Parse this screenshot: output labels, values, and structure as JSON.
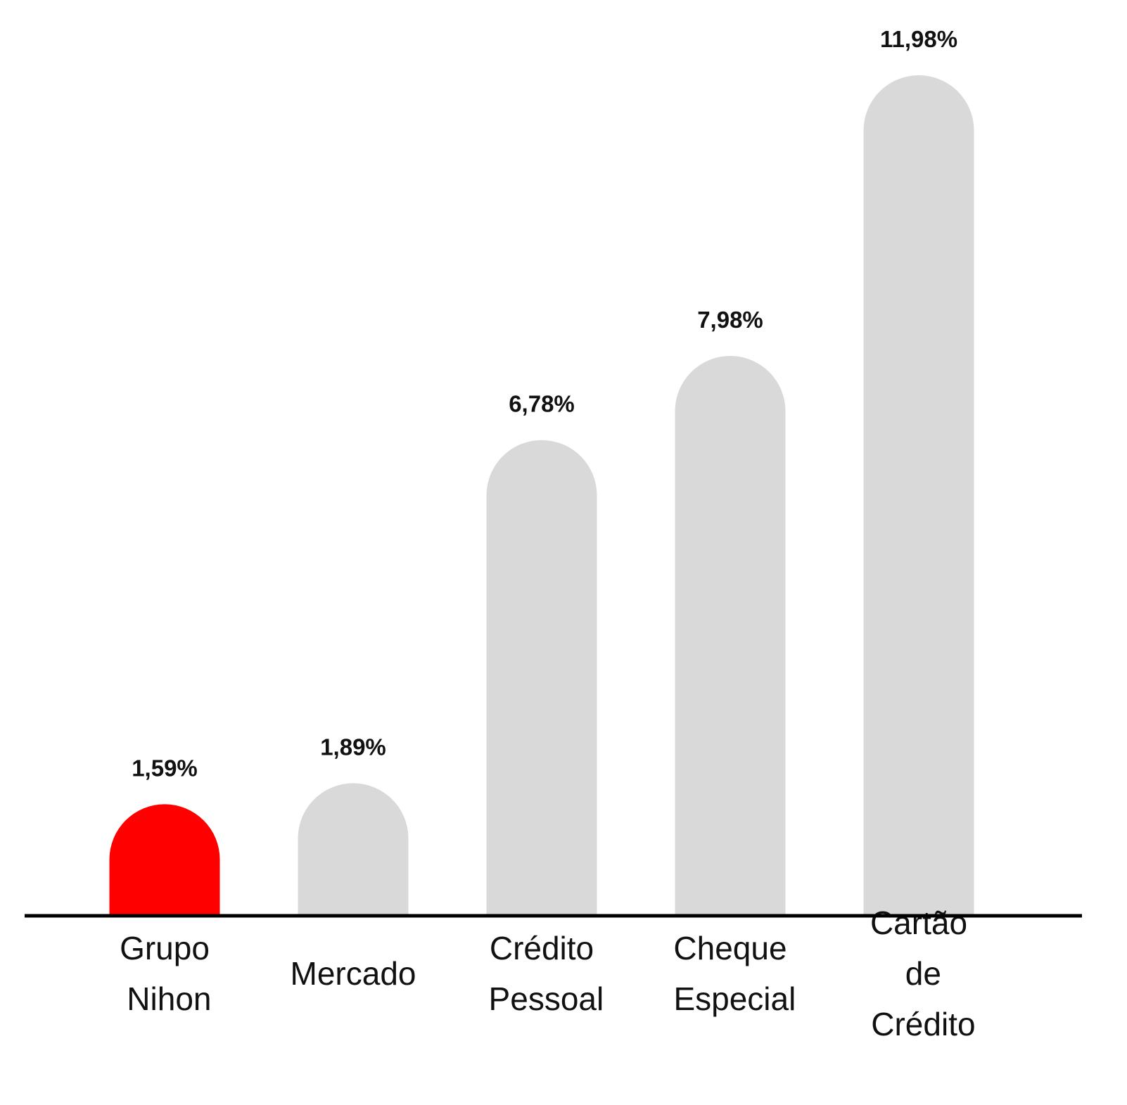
{
  "chart_data": {
    "type": "bar",
    "categories": [
      "Grupo Nihon",
      "Mercado",
      "Crédito Pessoal",
      "Cheque Especial",
      "Cartão de Crédito"
    ],
    "values": [
      1.59,
      1.89,
      6.78,
      7.98,
      11.98
    ],
    "value_labels": [
      "1,59%",
      "1,89%",
      "6,78%",
      "7,98%",
      "11,98%"
    ],
    "colors": [
      "#ff0000",
      "#d9d9d9",
      "#d9d9d9",
      "#d9d9d9",
      "#d9d9d9"
    ],
    "ylim": [
      0,
      12
    ]
  }
}
